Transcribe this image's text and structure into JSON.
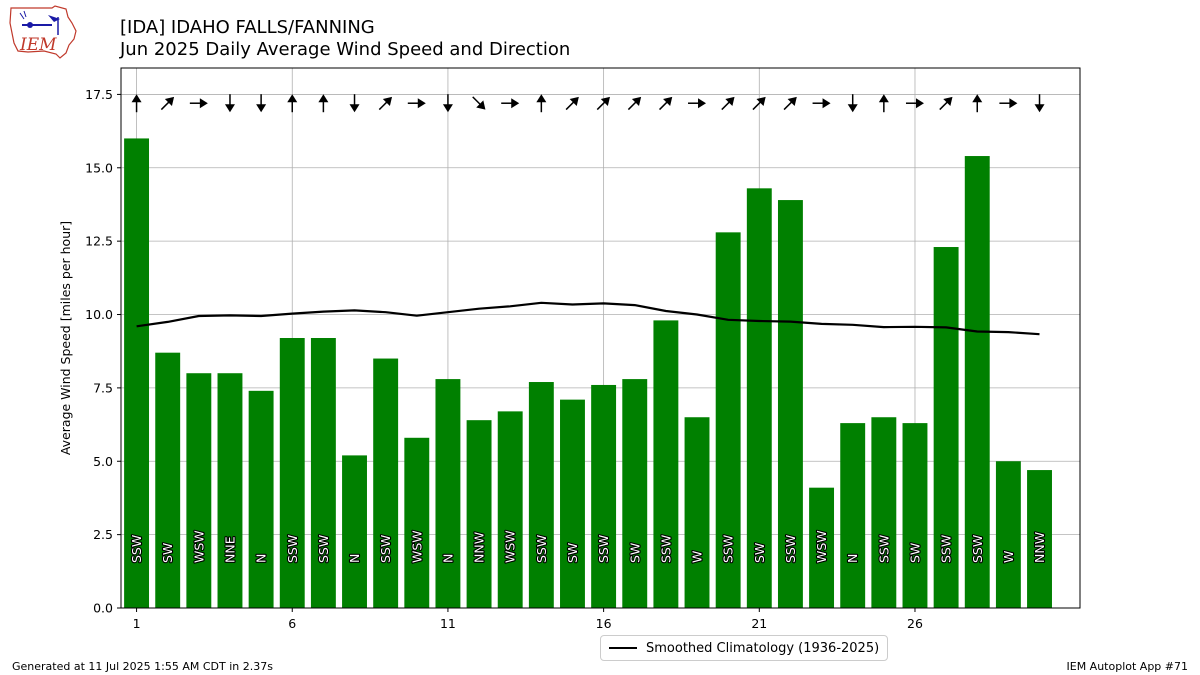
{
  "logo_text": "IEM",
  "title": {
    "line1": "[IDA] IDAHO FALLS/FANNING",
    "line2": "Jun 2025 Daily Average Wind Speed and Direction"
  },
  "chart_data": {
    "type": "bar",
    "ylabel": "Average Wind Speed [miles per hour]",
    "xlabel": "",
    "ylim": [
      0,
      18.4
    ],
    "xlim": [
      0.5,
      31.3
    ],
    "yticks": [
      0,
      2.5,
      5,
      7.5,
      10,
      12.5,
      15,
      17.5
    ],
    "yticklabels": [
      "0.0",
      "2.5",
      "5.0",
      "7.5",
      "10.0",
      "12.5",
      "15.0",
      "17.5"
    ],
    "xticks": [
      1,
      6,
      11,
      16,
      21,
      26
    ],
    "grid": true,
    "bar_color": "#008000",
    "days": [
      1,
      2,
      3,
      4,
      5,
      6,
      7,
      8,
      9,
      10,
      11,
      12,
      13,
      14,
      15,
      16,
      17,
      18,
      19,
      20,
      21,
      22,
      23,
      24,
      25,
      26,
      27,
      28,
      29,
      30
    ],
    "values": [
      16.0,
      8.7,
      8.0,
      8.0,
      7.4,
      9.2,
      9.2,
      5.2,
      8.5,
      5.8,
      7.8,
      6.4,
      6.7,
      7.7,
      7.1,
      7.6,
      7.8,
      9.8,
      6.5,
      12.8,
      14.3,
      13.9,
      4.1,
      6.3,
      6.5,
      6.3,
      12.3,
      15.4,
      5.0,
      4.7
    ],
    "directions": [
      "SSW",
      "SW",
      "WSW",
      "NNE",
      "N",
      "SSW",
      "SSW",
      "N",
      "SSW",
      "WSW",
      "N",
      "NNW",
      "WSW",
      "SSW",
      "SW",
      "SSW",
      "SW",
      "SSW",
      "W",
      "SSW",
      "SW",
      "SSW",
      "WSW",
      "N",
      "SSW",
      "SW",
      "SSW",
      "SSW",
      "W",
      "NNW"
    ],
    "arrow_directions": [
      "N",
      "NE",
      "E",
      "S",
      "S",
      "N",
      "N",
      "S",
      "NE",
      "E",
      "S",
      "SE",
      "E",
      "N",
      "NE",
      "NE",
      "NE",
      "NE",
      "E",
      "NE",
      "NE",
      "NE",
      "E",
      "S",
      "N",
      "E",
      "NE",
      "N",
      "E",
      "S"
    ],
    "climatology": {
      "name": "Smoothed Climatology (1936-2025)",
      "color": "#000000",
      "values": [
        9.6,
        9.75,
        9.95,
        9.97,
        9.95,
        10.03,
        10.1,
        10.14,
        10.08,
        9.96,
        10.08,
        10.2,
        10.28,
        10.4,
        10.34,
        10.38,
        10.32,
        10.12,
        10.0,
        9.82,
        9.78,
        9.76,
        9.68,
        9.65,
        9.57,
        9.58,
        9.56,
        9.42,
        9.4,
        9.33
      ]
    }
  },
  "footer": {
    "left": "Generated at 11 Jul 2025 1:55 AM CDT in 2.37s",
    "right": "IEM Autoplot App #71"
  }
}
